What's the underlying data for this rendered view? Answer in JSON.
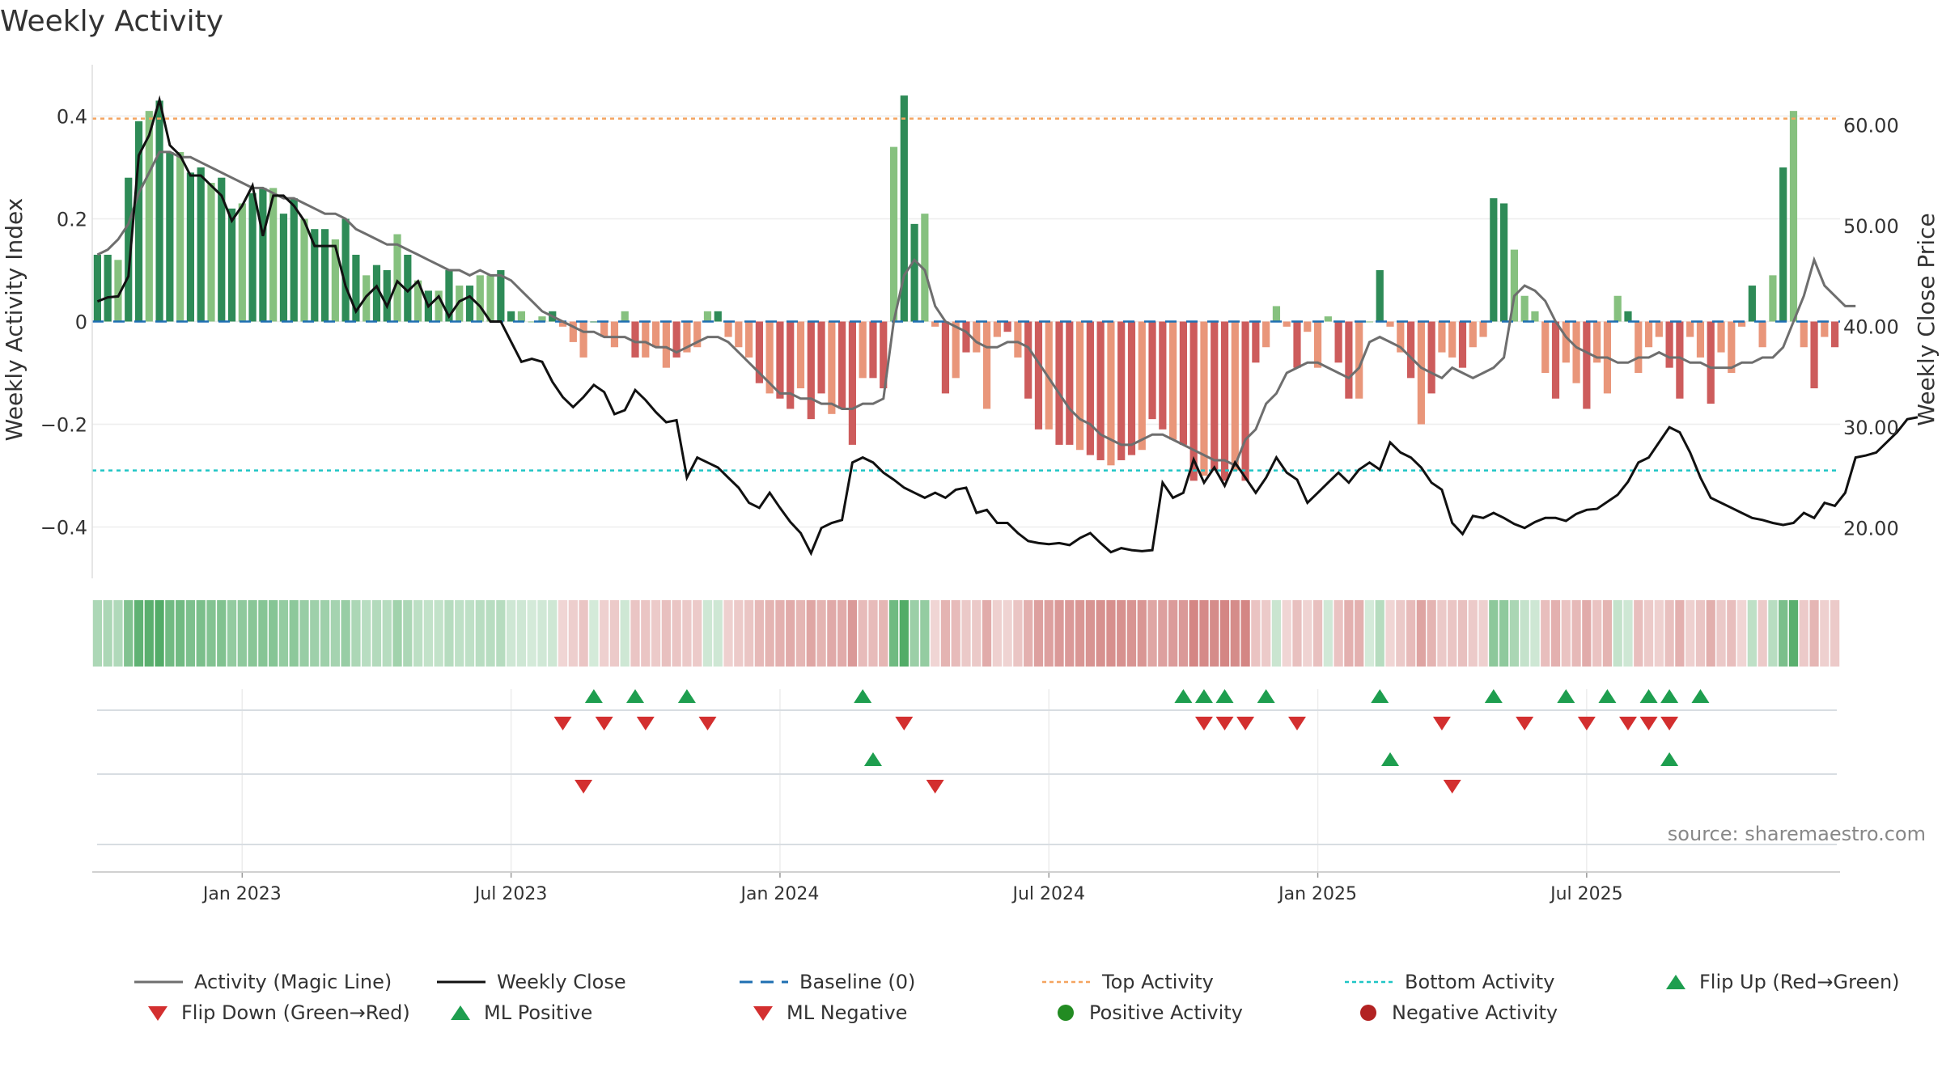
{
  "chart_data": {
    "type": "bar",
    "title": "Weekly Activity",
    "ylabel": "Weekly Activity Index",
    "y2label": "Weekly Close Price",
    "ylim": [
      -0.5,
      0.5
    ],
    "y2lim": [
      15,
      66
    ],
    "yticks": [
      "0.4",
      "0.2",
      "0",
      "−0.2",
      "−0.4"
    ],
    "y2ticks": [
      "60.00",
      "50.00",
      "40.00",
      "30.00",
      "20.00"
    ],
    "xtick_labels": [
      "Jan 2023",
      "Jul 2023",
      "Jan 2024",
      "Jul 2024",
      "Jan 2025",
      "Jul 2025"
    ],
    "weeks_before_first_tick": 15,
    "top_activity": 0.395,
    "bottom_activity": -0.29,
    "activity": [
      0.13,
      0.13,
      0.12,
      0.28,
      0.39,
      0.41,
      0.43,
      0.33,
      0.33,
      0.29,
      0.3,
      0.27,
      0.28,
      0.22,
      0.23,
      0.25,
      0.26,
      0.26,
      0.21,
      0.24,
      0.2,
      0.18,
      0.18,
      0.16,
      0.2,
      0.13,
      0.09,
      0.11,
      0.1,
      0.17,
      0.13,
      0.08,
      0.06,
      0.06,
      0.1,
      0.07,
      0.07,
      0.09,
      0.09,
      0.1,
      0.02,
      0.02,
      0.0,
      0.01,
      0.02,
      -0.01,
      -0.04,
      -0.07,
      0.0,
      -0.03,
      -0.05,
      0.02,
      -0.07,
      -0.07,
      -0.05,
      -0.09,
      -0.07,
      -0.06,
      -0.05,
      0.02,
      0.02,
      -0.03,
      -0.05,
      -0.07,
      -0.12,
      -0.14,
      -0.15,
      -0.17,
      -0.13,
      -0.19,
      -0.14,
      -0.18,
      -0.17,
      -0.24,
      -0.11,
      -0.11,
      -0.13,
      0.34,
      0.44,
      0.19,
      0.21,
      -0.01,
      -0.14,
      -0.11,
      -0.06,
      -0.06,
      -0.17,
      -0.03,
      -0.02,
      -0.07,
      -0.15,
      -0.21,
      -0.21,
      -0.24,
      -0.24,
      -0.25,
      -0.26,
      -0.27,
      -0.28,
      -0.27,
      -0.26,
      -0.25,
      -0.19,
      -0.21,
      -0.23,
      -0.24,
      -0.31,
      -0.3,
      -0.29,
      -0.31,
      -0.29,
      -0.31,
      -0.08,
      -0.05,
      0.03,
      -0.01,
      -0.09,
      -0.02,
      -0.09,
      0.01,
      -0.08,
      -0.15,
      -0.15,
      0.0,
      0.1,
      -0.01,
      -0.06,
      -0.11,
      -0.2,
      -0.14,
      -0.06,
      -0.07,
      -0.09,
      -0.05,
      -0.03,
      0.24,
      0.23,
      0.14,
      0.05,
      0.02,
      -0.1,
      -0.15,
      -0.08,
      -0.12,
      -0.17,
      -0.08,
      -0.14,
      0.05,
      0.02,
      -0.1,
      -0.05,
      -0.03,
      -0.09,
      -0.15,
      -0.03,
      -0.07,
      -0.16,
      -0.06,
      -0.1,
      -0.01,
      0.07,
      -0.05,
      0.09,
      0.3,
      0.41,
      -0.05,
      -0.13,
      -0.03,
      -0.05
    ],
    "magic_line": [
      0.13,
      0.14,
      0.16,
      0.19,
      0.25,
      0.29,
      0.33,
      0.33,
      0.32,
      0.32,
      0.31,
      0.3,
      0.29,
      0.28,
      0.27,
      0.26,
      0.26,
      0.25,
      0.24,
      0.24,
      0.23,
      0.22,
      0.21,
      0.21,
      0.2,
      0.18,
      0.17,
      0.16,
      0.15,
      0.15,
      0.14,
      0.13,
      0.12,
      0.11,
      0.1,
      0.1,
      0.09,
      0.1,
      0.09,
      0.09,
      0.08,
      0.06,
      0.04,
      0.02,
      0.01,
      0.0,
      -0.01,
      -0.02,
      -0.02,
      -0.03,
      -0.03,
      -0.03,
      -0.04,
      -0.04,
      -0.05,
      -0.05,
      -0.06,
      -0.05,
      -0.04,
      -0.03,
      -0.03,
      -0.04,
      -0.06,
      -0.08,
      -0.1,
      -0.12,
      -0.14,
      -0.14,
      -0.15,
      -0.15,
      -0.16,
      -0.16,
      -0.17,
      -0.17,
      -0.16,
      -0.16,
      -0.15,
      0.0,
      0.09,
      0.12,
      0.1,
      0.03,
      0.0,
      -0.01,
      -0.02,
      -0.04,
      -0.05,
      -0.05,
      -0.04,
      -0.04,
      -0.05,
      -0.08,
      -0.11,
      -0.14,
      -0.17,
      -0.19,
      -0.2,
      -0.22,
      -0.23,
      -0.24,
      -0.24,
      -0.23,
      -0.22,
      -0.22,
      -0.23,
      -0.24,
      -0.25,
      -0.26,
      -0.27,
      -0.27,
      -0.28,
      -0.23,
      -0.21,
      -0.16,
      -0.14,
      -0.1,
      -0.09,
      -0.08,
      -0.08,
      -0.09,
      -0.1,
      -0.11,
      -0.09,
      -0.04,
      -0.03,
      -0.04,
      -0.05,
      -0.07,
      -0.09,
      -0.1,
      -0.11,
      -0.09,
      -0.1,
      -0.11,
      -0.1,
      -0.09,
      -0.07,
      0.05,
      0.07,
      0.06,
      0.04,
      0.0,
      -0.03,
      -0.05,
      -0.06,
      -0.07,
      -0.07,
      -0.08,
      -0.08,
      -0.07,
      -0.07,
      -0.06,
      -0.07,
      -0.07,
      -0.08,
      -0.08,
      -0.09,
      -0.09,
      -0.09,
      -0.08,
      -0.08,
      -0.07,
      -0.07,
      -0.05,
      0.0,
      0.05,
      0.12,
      0.07,
      0.05,
      0.03,
      0.03
    ],
    "weekly_close": [
      42.5,
      42.9,
      43,
      45,
      57,
      59,
      62.5,
      58,
      57,
      55,
      55,
      54,
      53,
      50.5,
      52,
      54,
      49,
      53,
      53,
      52,
      50.5,
      48,
      48,
      48,
      44,
      41.5,
      43,
      44,
      42,
      44.5,
      43.5,
      44.5,
      42,
      43,
      41,
      42.5,
      43,
      42,
      40.5,
      40.5,
      38.5,
      36.5,
      36.8,
      36.5,
      34.5,
      33,
      32,
      33,
      34.2,
      33.5,
      31.3,
      31.7,
      33.7,
      32.7,
      31.5,
      30.5,
      30.7,
      25,
      27,
      26.5,
      26,
      25,
      24,
      22.5,
      22,
      23.5,
      22,
      20.6,
      19.5,
      17.5,
      20,
      20.5,
      20.8,
      26.5,
      27,
      26.5,
      25.5,
      24.8,
      24,
      23.5,
      23,
      23.5,
      23,
      23.8,
      24,
      21.5,
      21.8,
      20.5,
      20.5,
      19.5,
      18.7,
      18.5,
      18.4,
      18.5,
      18.3,
      19,
      19.5,
      18.5,
      17.6,
      18,
      17.8,
      17.7,
      17.8,
      24.5,
      23,
      23.5,
      26.8,
      24.5,
      26,
      24.2,
      26.5,
      25,
      23.5,
      25,
      27,
      25.5,
      24.8,
      22.5,
      23.5,
      24.5,
      25.5,
      24.5,
      25.8,
      26.5,
      25.8,
      28.5,
      27.5,
      27,
      26,
      24.5,
      23.8,
      20.5,
      19.4,
      21.2,
      21,
      21.5,
      21,
      20.4,
      20,
      20.6,
      21,
      21,
      20.7,
      21.4,
      21.8,
      21.9,
      22.6,
      23.3,
      24.6,
      26.5,
      27,
      28.5,
      30,
      29.5,
      27.5,
      25,
      23,
      22.5,
      22,
      21.5,
      21,
      20.8,
      20.5,
      20.3,
      20.5,
      21.5,
      21,
      22.5,
      22.2,
      23.5,
      27,
      27.2,
      27.5,
      28.5,
      29.5,
      30.8,
      31
    ],
    "flip_up": [
      48,
      52,
      57,
      74,
      105,
      107,
      109,
      113,
      124,
      135,
      142,
      146,
      150,
      152,
      155
    ],
    "flip_down": [
      45,
      49,
      53,
      59,
      78,
      107,
      109,
      111,
      116,
      130,
      138,
      144,
      148,
      150,
      152
    ],
    "ml_positive": [
      75,
      125,
      152
    ],
    "ml_negative": [
      47,
      81,
      131
    ],
    "colors": {
      "green_dark": "#2e8b57",
      "green_light": "#86c17f",
      "red_dark": "#cd5c5c",
      "red_light": "#e9967a",
      "magic_line": "#6e6e6e",
      "close_line": "#111111",
      "baseline": "#1f6fb2",
      "top_line": "#f4a460",
      "bottom_line": "#20c5c5",
      "marker_green": "#1e9e4f",
      "marker_red": "#d32f2f",
      "dot_green": "#228b22",
      "dot_red": "#b22222"
    },
    "source": "source: sharemaestro.com",
    "legend": [
      "Activity (Magic Line)",
      "Weekly Close",
      "Baseline (0)",
      "Top Activity",
      "Bottom Activity",
      "Flip Up (Red→Green)",
      "Flip Down (Green→Red)",
      "ML Positive",
      "ML Negative",
      "Positive Activity",
      "Negative Activity"
    ]
  }
}
